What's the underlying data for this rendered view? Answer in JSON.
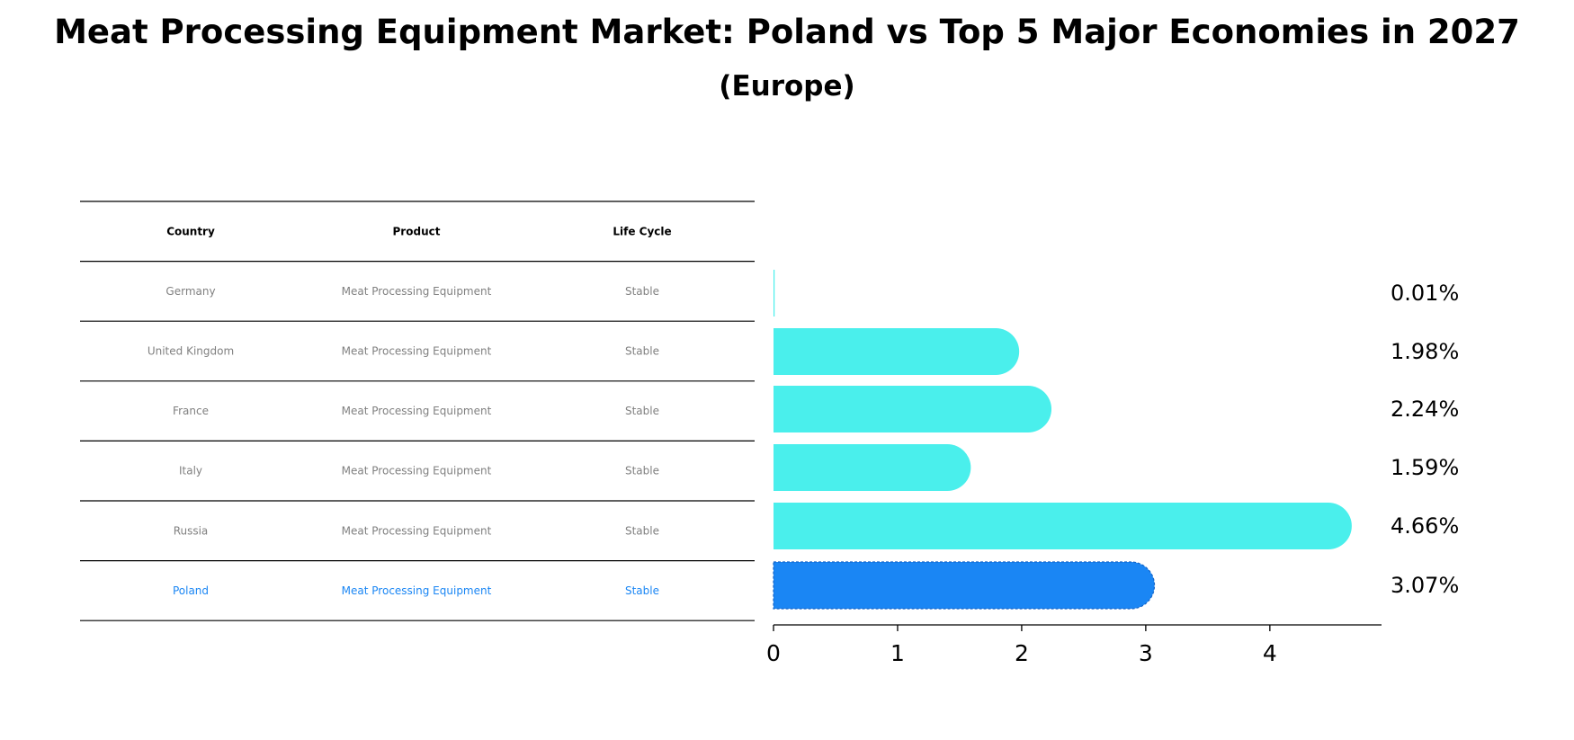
{
  "chart_data": {
    "type": "bar",
    "orientation": "horizontal",
    "title": "Meat Processing Equipment Market: Poland vs Top 5 Major Economies in 2027",
    "subtitle": "(Europe)",
    "table": {
      "columns": [
        "Country",
        "Product",
        "Life Cycle"
      ],
      "rows": [
        [
          "Germany",
          "Meat Processing Equipment",
          "Stable"
        ],
        [
          "United Kingdom",
          "Meat Processing Equipment",
          "Stable"
        ],
        [
          "France",
          "Meat Processing Equipment",
          "Stable"
        ],
        [
          "Italy",
          "Meat Processing Equipment",
          "Stable"
        ],
        [
          "Russia",
          "Meat Processing Equipment",
          "Stable"
        ],
        [
          "Poland",
          "Meat Processing Equipment",
          "Stable"
        ]
      ],
      "highlight_row": 5
    },
    "categories": [
      "Germany",
      "United Kingdom",
      "France",
      "Italy",
      "Russia",
      "Poland"
    ],
    "values": [
      0.01,
      1.98,
      2.24,
      1.59,
      4.66,
      3.07
    ],
    "value_labels": [
      "0.01%",
      "1.98%",
      "2.24%",
      "1.59%",
      "4.66%",
      "3.07%"
    ],
    "xlim": [
      0,
      4.9
    ],
    "xticks": [
      0,
      1,
      2,
      3,
      4
    ],
    "xlabel": "",
    "ylabel": "",
    "grid": false,
    "colors": {
      "bar": "#4aefec",
      "highlight_bar": "#1a86f4",
      "table_text": "#808080",
      "highlight_text": "#1a86f4",
      "header_text": "#000000",
      "rule": "#000000"
    }
  }
}
